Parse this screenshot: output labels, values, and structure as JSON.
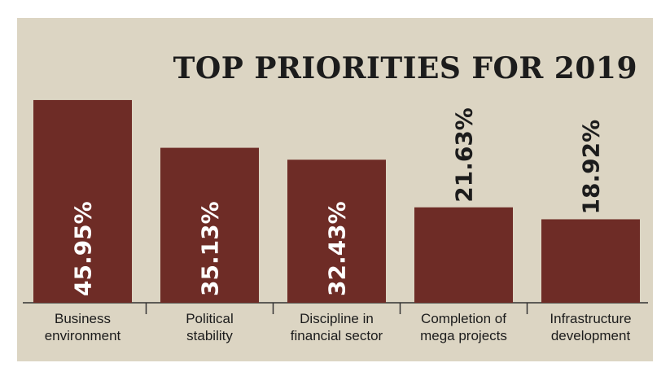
{
  "chart_data": {
    "type": "bar",
    "title": "TOP PRIORITIES FOR 2019",
    "categories": [
      [
        "Business",
        "environment"
      ],
      [
        "Political",
        "stability"
      ],
      [
        "Discipline in",
        "financial sector"
      ],
      [
        "Completion of",
        "mega projects"
      ],
      [
        "Infrastructure",
        "development"
      ]
    ],
    "values": [
      45.95,
      35.13,
      32.43,
      21.63,
      18.92
    ],
    "value_labels": [
      "45.95%",
      "35.13%",
      "32.43%",
      "21.63%",
      "18.92%"
    ],
    "ylim": [
      0,
      50
    ],
    "bar_color": "#6e2c26",
    "axis_color": "#333333",
    "background_color": "#dcd5c3"
  }
}
